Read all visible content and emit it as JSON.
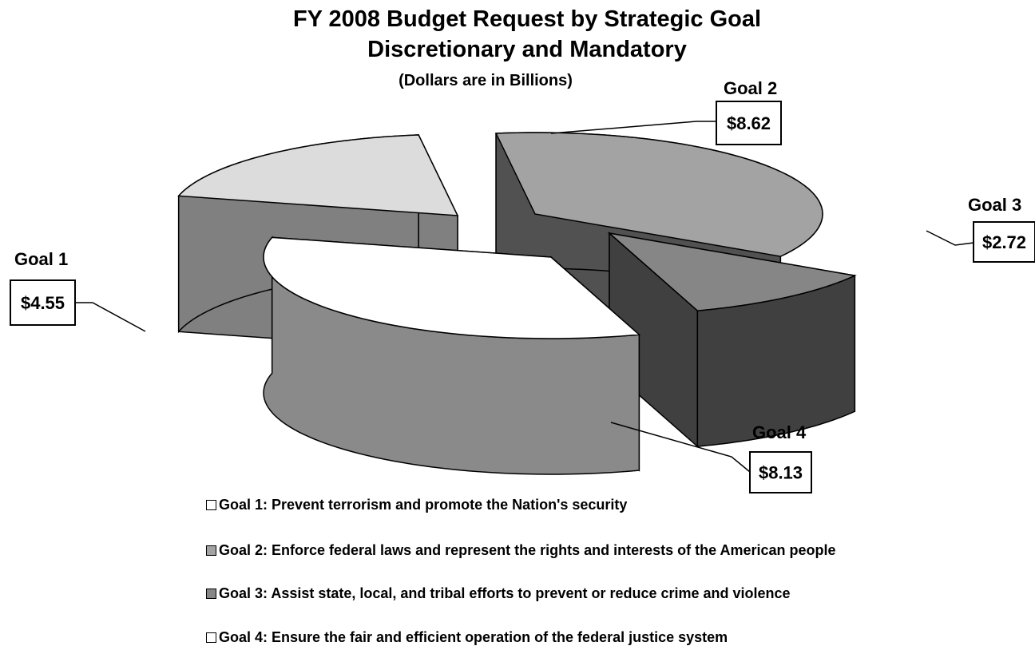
{
  "title": "FY 2008 Budget Request by Strategic Goal",
  "subtitle": "Discretionary and Mandatory",
  "note": "(Dollars are in Billions)",
  "chart_data": {
    "type": "pie",
    "title": "FY 2008 Budget Request by Strategic Goal",
    "subtitle": "Discretionary and Mandatory",
    "units_note": "(Dollars are in Billions)",
    "exploded": true,
    "three_d": true,
    "slices": [
      {
        "name": "Goal 1",
        "value": 4.55,
        "label": "$4.55",
        "top_color": "#dcdcdc",
        "side_color": "#808080"
      },
      {
        "name": "Goal 2",
        "value": 8.62,
        "label": "$8.62",
        "top_color": "#a3a3a3",
        "side_color": "#515151"
      },
      {
        "name": "Goal 3",
        "value": 2.72,
        "label": "$2.72",
        "top_color": "#868686",
        "side_color": "#404040"
      },
      {
        "name": "Goal 4",
        "value": 8.13,
        "label": "$8.13",
        "top_color": "#ffffff",
        "side_color": "#8a8a8a"
      }
    ],
    "legend_placement": "bottom"
  },
  "legend": [
    {
      "text": "Goal 1:  Prevent terrorism and promote the Nation's security",
      "color": "#ffffff"
    },
    {
      "text": "Goal 2:  Enforce federal laws and represent the rights and interests of the American people",
      "color": "#a3a3a3"
    },
    {
      "text": "Goal 3:  Assist state, local, and tribal efforts to prevent or reduce crime and violence",
      "color": "#868686"
    },
    {
      "text": "Goal 4:  Ensure the fair and efficient operation of the federal justice system",
      "color": "#ffffff"
    }
  ]
}
